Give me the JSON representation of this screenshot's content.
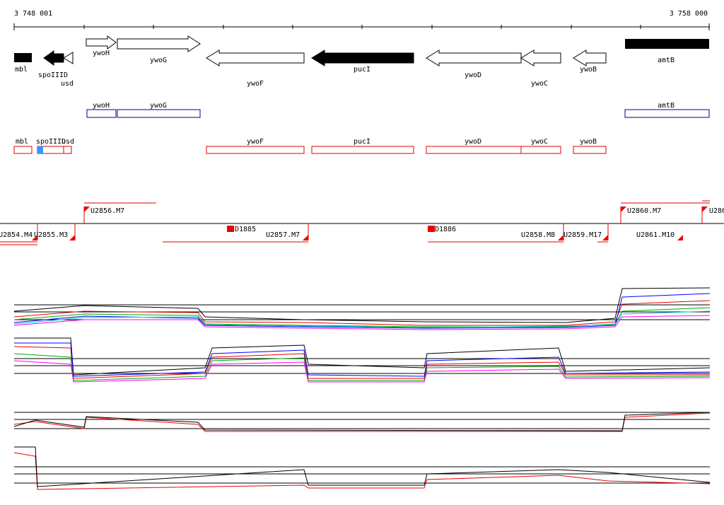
{
  "ruler": {
    "start": "3 748 001",
    "end": "3 758 000"
  },
  "genes": [
    "mbl",
    "spoIIID",
    "usd",
    "ywoH",
    "ywoG",
    "ywoF",
    "pucI",
    "ywoD",
    "ywoC",
    "ywoB",
    "amtB"
  ],
  "annotation_top": [
    "ywoH",
    "ywoG",
    "amtB"
  ],
  "annotation_bottom": [
    "mbl",
    "spoIIID",
    "usd",
    "ywoF",
    "pucI",
    "ywoD",
    "ywoC",
    "ywoB"
  ],
  "transcripts": [
    "U2854.M4",
    "U2855.M3",
    "U2856.M7",
    "D1885",
    "U2857.M7",
    "D1886",
    "U2858.M8",
    "U2859.M17",
    "U2860.M7",
    "U2861.M10",
    "U286"
  ]
}
